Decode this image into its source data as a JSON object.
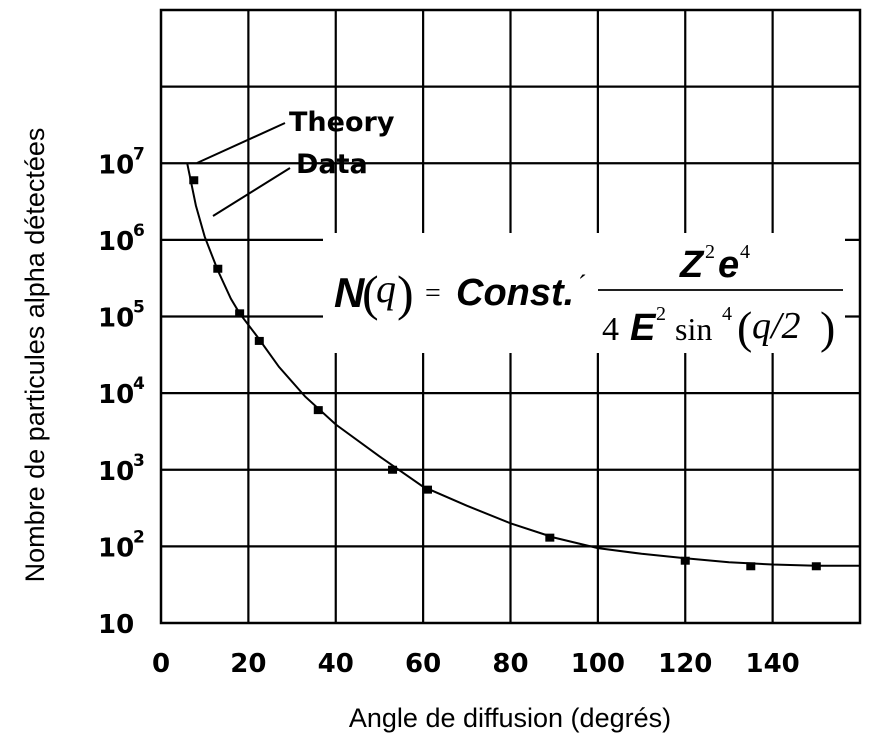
{
  "chart_data": {
    "type": "scatter",
    "xlabel": "Angle de diffusion (degrés)",
    "ylabel": "Nombre de particules alpha détectées",
    "xlim": [
      0,
      160
    ],
    "ylim": [
      10,
      1000000000
    ],
    "yscale": "log",
    "grid": true,
    "x_ticks": [
      "0",
      "20",
      "40",
      "60",
      "80",
      "100",
      "120",
      "140"
    ],
    "y_ticks": [
      {
        "base": "10",
        "exp": "7",
        "value": 10000000
      },
      {
        "base": "10",
        "exp": "6",
        "value": 1000000
      },
      {
        "base": "10",
        "exp": "5",
        "value": 100000
      },
      {
        "base": "10",
        "exp": "4",
        "value": 10000
      },
      {
        "base": "10",
        "exp": "3",
        "value": 1000
      },
      {
        "base": "10",
        "exp": "2",
        "value": 100
      },
      {
        "base": "10",
        "exp": "",
        "value": 10
      }
    ],
    "series": [
      {
        "name": "Data",
        "kind": "points",
        "x": [
          7.5,
          13,
          18,
          22.5,
          36,
          53,
          61,
          89,
          120,
          135,
          150
        ],
        "y": [
          6000000,
          420000,
          110000,
          48000,
          6000,
          1000,
          550,
          130,
          65,
          55,
          55
        ]
      },
      {
        "name": "Theory",
        "kind": "line",
        "x": [
          6,
          8,
          10,
          13,
          16,
          18,
          22,
          27,
          33,
          40,
          50,
          60,
          70,
          80,
          90,
          100,
          110,
          120,
          130,
          140,
          150,
          160
        ],
        "y": [
          10000000,
          2800000,
          1100000,
          400000,
          170000,
          110000,
          55000,
          22000,
          9000,
          3900,
          1500,
          600,
          340,
          200,
          130,
          95,
          80,
          70,
          62,
          58,
          56,
          56
        ]
      }
    ],
    "annotations": [
      {
        "text": "Theory",
        "points_to": "Theory"
      },
      {
        "text": "Data",
        "points_to": "Data"
      }
    ],
    "formula": {
      "lhs_N": "N",
      "lhs_arg": "q",
      "equals": "=",
      "const": "Const.",
      "times": "´",
      "num_Z": "Z",
      "num_Z_exp": "2",
      "num_e": "e",
      "num_e_exp": "4",
      "den_four": "4",
      "den_E": "E",
      "den_E_exp": "2",
      "den_sin": "sin",
      "den_sin_exp": "4",
      "den_arg": "q/2"
    }
  }
}
